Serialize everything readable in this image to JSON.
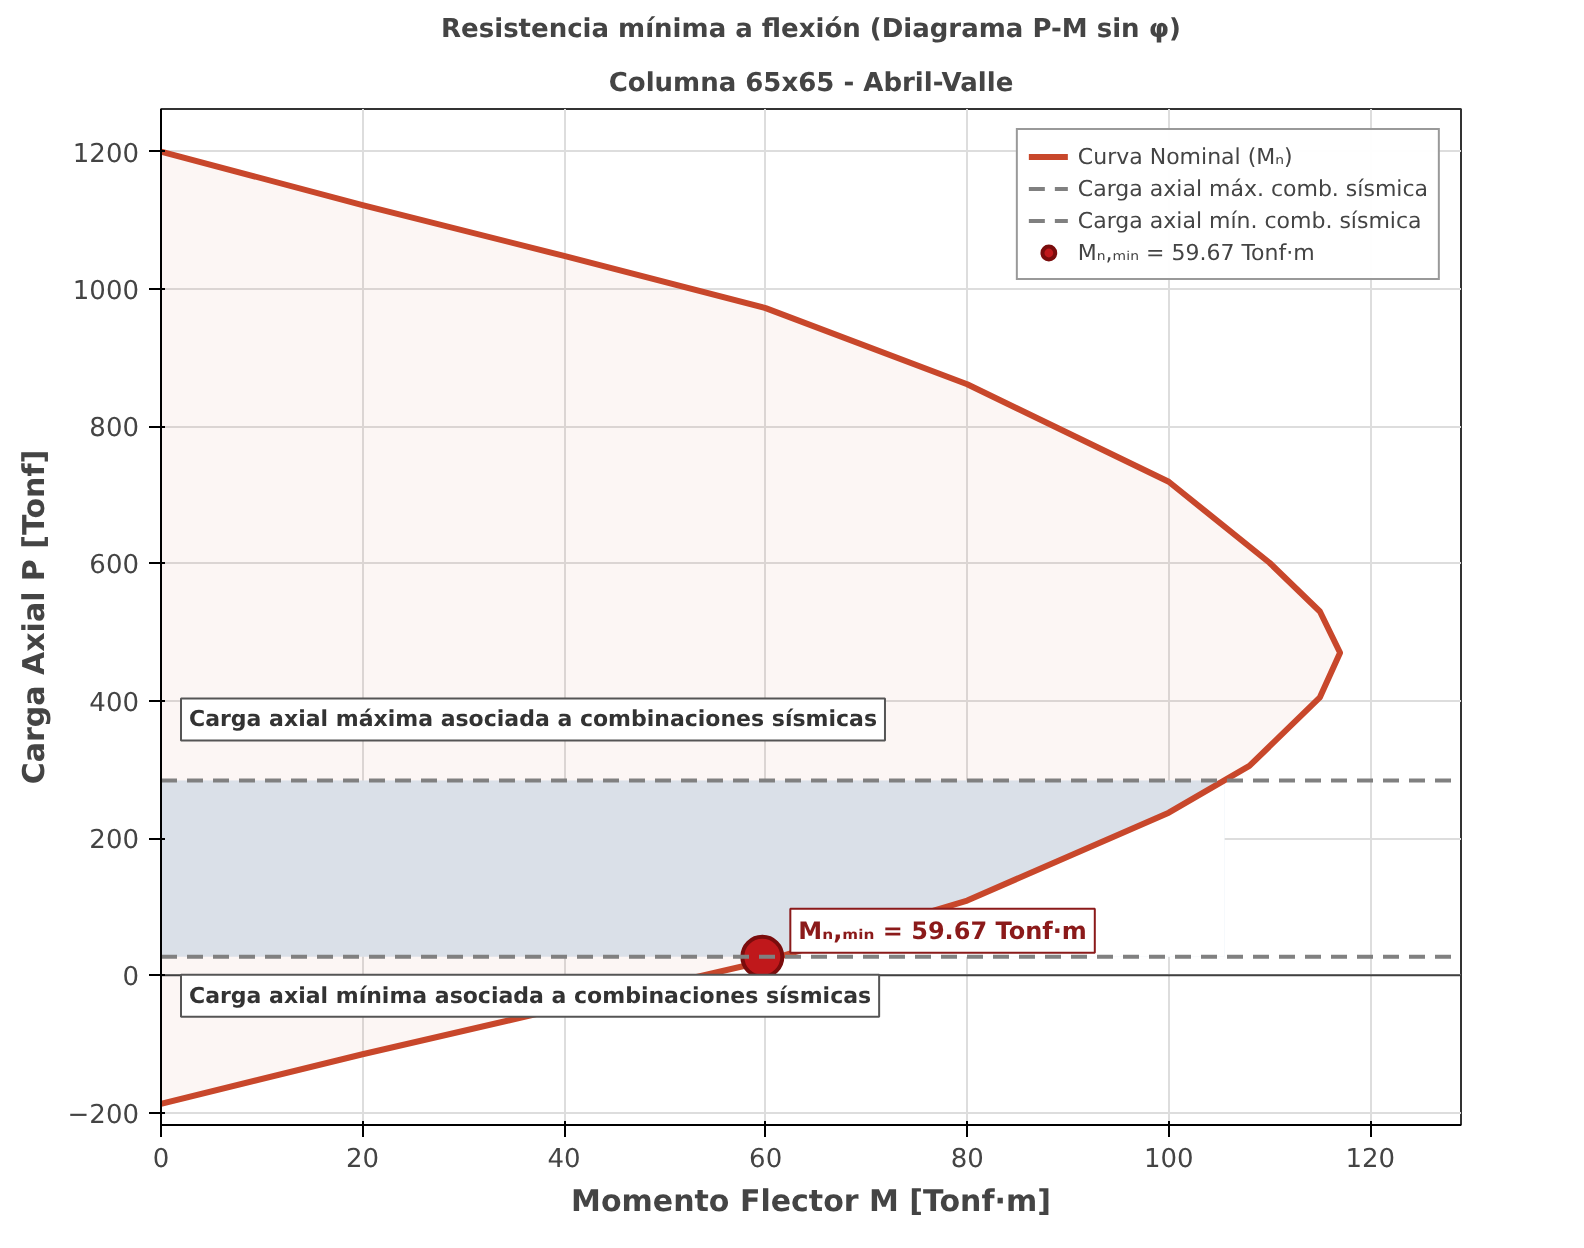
{
  "chart_data": {
    "type": "area",
    "title": "Resistencia mínima a flexión (Diagrama P-M sin φ)",
    "subtitle": "Columna 65x65 - Abril-Valle",
    "xlabel": "Momento Flector M [Tonf·m]",
    "ylabel": "Carga Axial P [Tonf]",
    "xlim": [
      0,
      129
    ],
    "ylim": [
      -218,
      1262
    ],
    "xticks": [
      0,
      20,
      40,
      60,
      80,
      100,
      120
    ],
    "yticks": [
      -200,
      0,
      200,
      400,
      600,
      800,
      1000,
      1200
    ],
    "grid": true,
    "legend": "top right",
    "series": [
      {
        "name": "Curva Nominal (Mₙ)",
        "color": "#c8472b",
        "x": [
          0,
          20,
          40,
          60,
          80,
          100,
          110,
          115,
          117,
          115,
          108,
          100,
          80,
          60,
          20,
          0
        ],
        "values": [
          1200,
          1122,
          1048,
          972,
          861,
          719,
          601,
          530,
          470,
          405,
          305,
          237,
          109,
          21,
          -115,
          -187
        ]
      },
      {
        "name": "Mₙ,ₘᵢₙ = 59.67 Tonf·m",
        "type": "scatter",
        "marker": "circle",
        "color": "#c0181b",
        "x": [
          59.67
        ],
        "values": [
          27
        ]
      }
    ],
    "ref_lines": [
      {
        "axis": "y",
        "value": 284,
        "label": "Carga axial máx. comb. sísmica",
        "color": "#808080",
        "line_style": "dashed"
      },
      {
        "axis": "y",
        "value": 27,
        "label": "Carga axial mín. comb. sísmica",
        "color": "#808080",
        "line_style": "dashed"
      },
      {
        "axis": "y",
        "value": 0,
        "color": "#404040",
        "line_style": "solid"
      }
    ],
    "bands": [
      {
        "axis": "y",
        "from": 27,
        "to": 284,
        "color": "#dce8f3"
      }
    ],
    "annotations": [
      "Carga axial máxima asociada a combinaciones sísmicas",
      "Carga axial mínima asociada a combinaciones sísmicas",
      {
        "text": "Mₙ,ₘᵢₙ = 59.67 Tonf·m",
        "x": 59.67,
        "y": 27
      }
    ]
  }
}
